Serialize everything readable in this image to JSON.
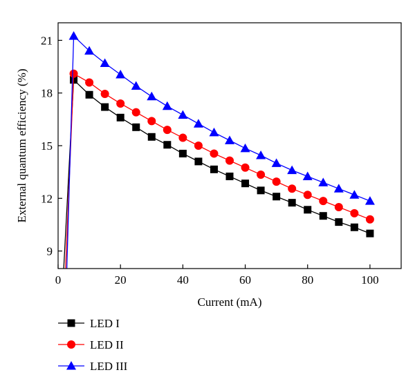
{
  "chart_data": {
    "type": "line",
    "xlabel": "Current (mA)",
    "ylabel": "External quantum efficiency (%)",
    "xlim": [
      0,
      110
    ],
    "ylim": [
      8,
      22
    ],
    "xticks": [
      0,
      20,
      40,
      60,
      80,
      100
    ],
    "yticks": [
      9,
      12,
      15,
      18,
      21
    ],
    "grid": false,
    "legend_position": "bottom-left, below plot",
    "series": [
      {
        "name": "LED I",
        "color": "#000000",
        "marker": "square",
        "x": [
          1.8,
          5,
          10,
          15,
          20,
          25,
          30,
          35,
          40,
          45,
          50,
          55,
          60,
          65,
          70,
          75,
          80,
          85,
          90,
          95,
          100
        ],
        "y": [
          8.0,
          18.75,
          17.9,
          17.2,
          16.6,
          16.05,
          15.5,
          15.05,
          14.55,
          14.1,
          13.65,
          13.25,
          12.85,
          12.45,
          12.1,
          11.75,
          11.35,
          11.0,
          10.65,
          10.35,
          10.0
        ]
      },
      {
        "name": "LED II",
        "color": "#ff0000",
        "marker": "circle",
        "x": [
          2.4,
          5,
          10,
          15,
          20,
          25,
          30,
          35,
          40,
          45,
          50,
          55,
          60,
          65,
          70,
          75,
          80,
          85,
          90,
          95,
          100
        ],
        "y": [
          8.0,
          19.1,
          18.6,
          17.95,
          17.4,
          16.9,
          16.4,
          15.9,
          15.45,
          15.0,
          14.55,
          14.15,
          13.75,
          13.35,
          12.95,
          12.55,
          12.2,
          11.85,
          11.5,
          11.15,
          10.8
        ]
      },
      {
        "name": "LED III",
        "color": "#0000ff",
        "marker": "triangle",
        "x": [
          2.8,
          5,
          10,
          15,
          20,
          25,
          30,
          35,
          40,
          45,
          50,
          55,
          60,
          65,
          70,
          75,
          80,
          85,
          90,
          95,
          100
        ],
        "y": [
          8.0,
          21.25,
          20.4,
          19.7,
          19.05,
          18.4,
          17.8,
          17.25,
          16.75,
          16.25,
          15.75,
          15.3,
          14.85,
          14.45,
          14.0,
          13.6,
          13.25,
          12.9,
          12.55,
          12.2,
          11.85
        ]
      }
    ]
  }
}
